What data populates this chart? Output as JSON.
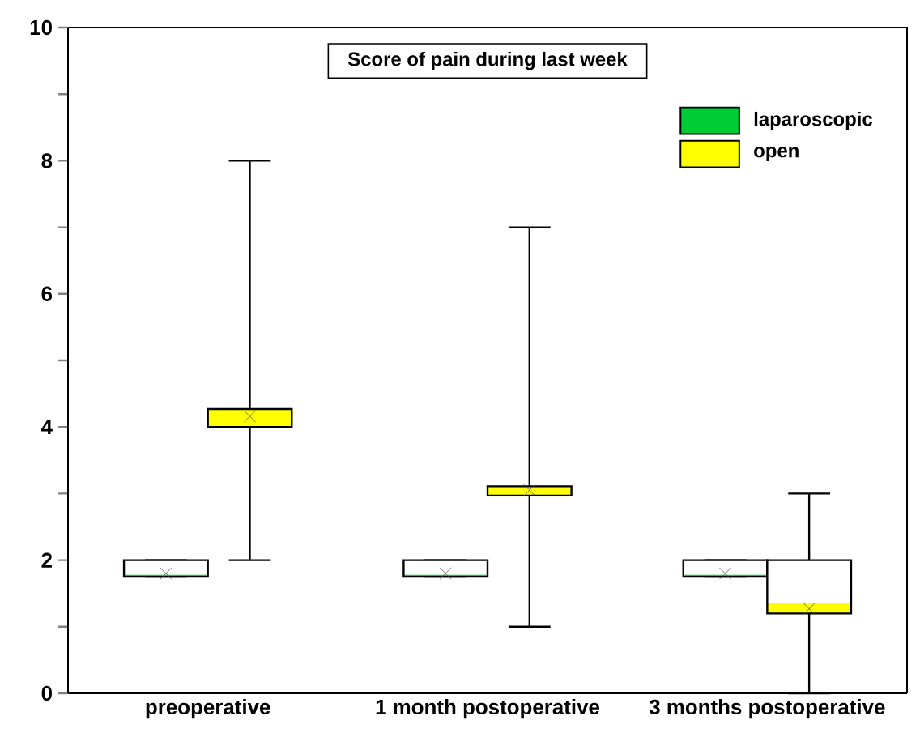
{
  "chart_data": {
    "type": "box",
    "title": "Score of pain during last week",
    "categories": [
      "preoperative",
      "1 month postoperative",
      "3 months postoperative"
    ],
    "series": [
      {
        "name": "laparoscopic",
        "color": "#00cc33",
        "boxes": [
          {
            "low": 1.75,
            "q1": 1.75,
            "median": 1.78,
            "q3": 2.0,
            "high": 2.0,
            "mean": 1.8
          },
          {
            "low": 1.75,
            "q1": 1.75,
            "median": 1.78,
            "q3": 2.0,
            "high": 2.0,
            "mean": 1.8
          },
          {
            "low": 1.75,
            "q1": 1.75,
            "median": 1.78,
            "q3": 2.0,
            "high": 2.0,
            "mean": 1.8
          }
        ]
      },
      {
        "name": "open",
        "color": "#ffff00",
        "boxes": [
          {
            "low": 2,
            "q1": 4.0,
            "median": 4.27,
            "q3": 4.27,
            "high": 8,
            "mean": 4.16
          },
          {
            "low": 1,
            "q1": 2.97,
            "median": 3.11,
            "q3": 3.11,
            "high": 7,
            "mean": 3.05
          },
          {
            "low": 0,
            "q1": 1.2,
            "median": 1.35,
            "q3": 2.0,
            "high": 3,
            "mean": 1.27
          }
        ]
      }
    ],
    "ylim": [
      0,
      10
    ],
    "yticks": [
      0,
      {
        "value": 1,
        "label": null
      },
      2,
      {
        "value": 3,
        "label": null
      },
      4,
      {
        "value": 5,
        "label": null
      },
      6,
      {
        "value": 7,
        "label": null
      },
      8,
      {
        "value": 9,
        "label": null
      },
      10
    ],
    "legend": "top right"
  }
}
